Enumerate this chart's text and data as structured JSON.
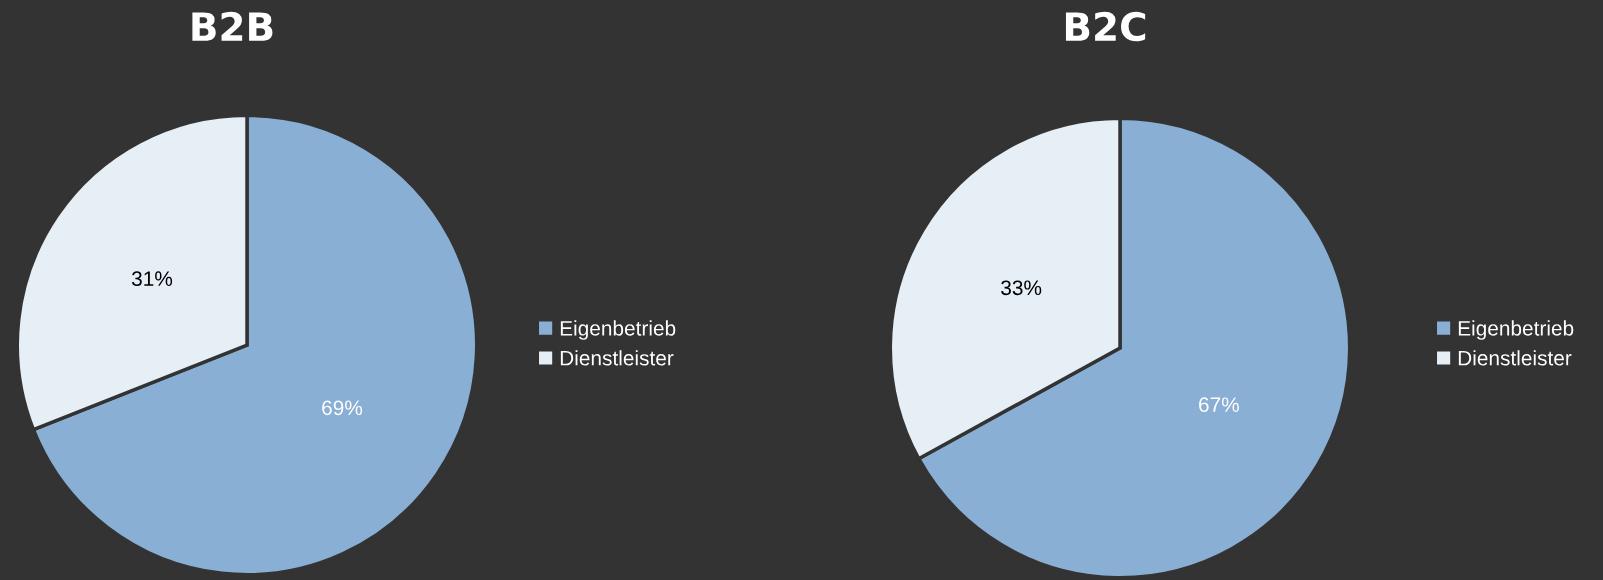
{
  "chart_data": [
    {
      "type": "pie",
      "title": "B2B",
      "categories": [
        "Eigenbetrieb",
        "Dienstleister"
      ],
      "values": [
        69,
        31
      ],
      "value_labels": [
        "69%",
        "31%"
      ],
      "colors": [
        "#8aafd4",
        "#e6eef6"
      ],
      "legend": "right"
    },
    {
      "type": "pie",
      "title": "B2C",
      "categories": [
        "Eigenbetrieb",
        "Dienstleister"
      ],
      "values": [
        67,
        33
      ],
      "value_labels": [
        "67%",
        "33%"
      ],
      "colors": [
        "#8aafd4",
        "#e6eef6"
      ],
      "legend": "right"
    }
  ]
}
